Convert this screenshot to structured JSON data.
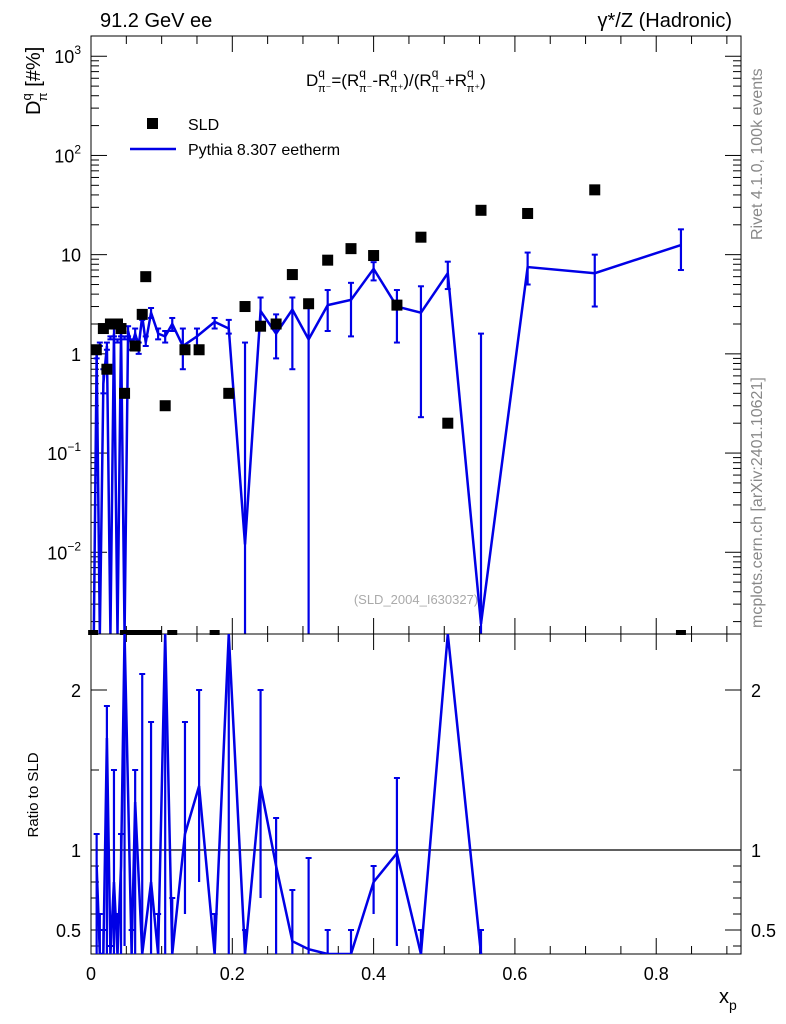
{
  "header": {
    "left": "91.2 GeV ee",
    "right": "γ*/Z (Hadronic)"
  },
  "formula": {
    "lhs_main": "D",
    "lhs_sup": "q",
    "lhs_sub": "π⁻",
    "eq1": "=(R",
    "sup_q": "q",
    "sub1": "π⁻",
    "minus": "-R",
    "sub2": "π⁺",
    "mid": ")/(R",
    "plus": "+R",
    "close": ")"
  },
  "side_text": {
    "top": "Rivet 4.1.0,  100k events",
    "bottom": "mcplots.cern.ch [arXiv:2401.10621]"
  },
  "watermark": "(SLD_2004_I630327)",
  "chart_data": [
    {
      "type": "scatter",
      "panel": "main",
      "ylabel_main": "D",
      "ylabel_sup": "q",
      "ylabel_sub": "π",
      "ylabel_unit": " [#%]",
      "xlim": [
        0,
        0.92
      ],
      "ylim": [
        0.0015,
        1600
      ],
      "yscale": "log",
      "yticks": [
        {
          "value": 0.01,
          "base": "10",
          "exp": "−2"
        },
        {
          "value": 0.1,
          "base": "10",
          "exp": "−1"
        },
        {
          "value": 1,
          "base": "1",
          "exp": ""
        },
        {
          "value": 10,
          "base": "10",
          "exp": ""
        },
        {
          "value": 100,
          "base": "10",
          "exp": "2"
        },
        {
          "value": 1000,
          "base": "10",
          "exp": "3"
        }
      ],
      "legend": [
        {
          "label": "SLD",
          "marker": "square"
        },
        {
          "label": "Pythia 8.307 eetherm",
          "marker": "line"
        }
      ],
      "legend_position": "top-left",
      "series": [
        {
          "name": "SLD",
          "color": "#000000",
          "points": [
            [
              0.0075,
              1.1
            ],
            [
              0.0175,
              1.8
            ],
            [
              0.0225,
              0.7
            ],
            [
              0.0275,
              2.0
            ],
            [
              0.0375,
              2.0
            ],
            [
              0.0425,
              1.8
            ],
            [
              0.0475,
              0.4
            ],
            [
              0.0625,
              1.2
            ],
            [
              0.0725,
              2.5
            ],
            [
              0.0775,
              6.0
            ],
            [
              0.105,
              0.3
            ],
            [
              0.133,
              1.1
            ],
            [
              0.153,
              1.1
            ],
            [
              0.195,
              0.4
            ],
            [
              0.218,
              3.0
            ],
            [
              0.24,
              1.9
            ],
            [
              0.262,
              2.0
            ],
            [
              0.285,
              6.3
            ],
            [
              0.308,
              3.2
            ],
            [
              0.335,
              8.8
            ],
            [
              0.368,
              11.5
            ],
            [
              0.4,
              9.8
            ],
            [
              0.433,
              3.1
            ],
            [
              0.467,
              15.0
            ],
            [
              0.505,
              0.2
            ],
            [
              0.552,
              28.0
            ],
            [
              0.618,
              26.0
            ],
            [
              0.713,
              45.0
            ]
          ],
          "below_range_x": [
            0.003,
            0.048,
            0.058,
            0.068,
            0.082,
            0.093,
            0.115,
            0.175,
            0.835
          ]
        },
        {
          "name": "Pythia 8.307 eetherm",
          "color": "#0000e6",
          "points": [
            [
              0.004,
              0.0008,
              1.0,
              1.2
            ],
            [
              0.008,
              1.0,
              0.9,
              1.1
            ],
            [
              0.0125,
              0.0008,
              1.2,
              1.3
            ],
            [
              0.0175,
              0.5,
              0.4,
              0.7
            ],
            [
              0.0225,
              1.2,
              1.1,
              1.3
            ],
            [
              0.0275,
              0.0008,
              1.4,
              1.5
            ],
            [
              0.0325,
              1.6,
              1.5,
              1.8
            ],
            [
              0.0375,
              0.0008,
              1.3,
              1.4
            ],
            [
              0.0425,
              1.7,
              1.5,
              1.8
            ],
            [
              0.0475,
              0.0008,
              1.4,
              1.5
            ],
            [
              0.0525,
              1.7,
              1.5,
              1.9
            ],
            [
              0.0575,
              1.2,
              1.1,
              1.4
            ],
            [
              0.0625,
              1.6,
              1.4,
              1.8
            ],
            [
              0.0675,
              1.2,
              1.0,
              1.3
            ],
            [
              0.0725,
              2.4,
              2.2,
              2.7
            ],
            [
              0.0775,
              1.3,
              1.2,
              1.5
            ],
            [
              0.085,
              2.6,
              2.3,
              2.9
            ],
            [
              0.095,
              1.6,
              1.4,
              1.8
            ],
            [
              0.105,
              1.5,
              1.3,
              1.7
            ],
            [
              0.115,
              2.0,
              1.7,
              2.3
            ],
            [
              0.13,
              1.2,
              0.7,
              1.8
            ],
            [
              0.15,
              1.5,
              1.2,
              1.8
            ],
            [
              0.175,
              2.1,
              1.8,
              2.3
            ],
            [
              0.195,
              1.8,
              1.6,
              2.2
            ],
            [
              0.218,
              0.012,
              0.0008,
              1.3
            ],
            [
              0.24,
              2.7,
              1.8,
              3.7
            ],
            [
              0.262,
              1.6,
              0.9,
              2.5
            ],
            [
              0.285,
              2.8,
              0.7,
              3.7
            ],
            [
              0.308,
              1.4,
              0.0008,
              3.5
            ],
            [
              0.335,
              3.1,
              1.7,
              4.4
            ],
            [
              0.368,
              3.5,
              1.5,
              5.2
            ],
            [
              0.4,
              7.2,
              5.5,
              8.4
            ],
            [
              0.433,
              3.0,
              1.3,
              4.4
            ],
            [
              0.467,
              2.6,
              0.23,
              4.8
            ],
            [
              0.505,
              6.5,
              4.5,
              8.5
            ],
            [
              0.552,
              0.0019,
              0.0008,
              1.6
            ],
            [
              0.618,
              7.5,
              5.0,
              10.5
            ],
            [
              0.713,
              6.5,
              3.0,
              10.0
            ],
            [
              0.835,
              12.5,
              7.0,
              18.0
            ]
          ]
        }
      ]
    },
    {
      "type": "line",
      "panel": "ratio",
      "ylabel": "Ratio to SLD",
      "xlabel_main": "x",
      "xlabel_sub": "p",
      "xlim": [
        0,
        0.92
      ],
      "ylim": [
        0.35,
        2.35
      ],
      "yticks": [
        0.5,
        1,
        2
      ],
      "xticks": [
        0,
        0.2,
        0.4,
        0.6,
        0.8
      ],
      "xticklabels": [
        "0",
        "0.2",
        "0.4",
        "0.6",
        "0.8"
      ],
      "yticklabels": [
        "0.5",
        "1",
        "2"
      ],
      "reference_line": 1,
      "series": [
        {
          "name": "Pythia 8.307 eetherm / SLD",
          "color": "#0000e6",
          "points": [
            [
              0.008,
              0.9,
              0.0,
              1.1
            ],
            [
              0.0125,
              0.0,
              0.0,
              0.6
            ],
            [
              0.0175,
              0.3,
              0.0,
              0.5
            ],
            [
              0.0225,
              1.7,
              0.0,
              1.9
            ],
            [
              0.0275,
              0.0,
              0.0,
              0.4
            ],
            [
              0.0325,
              0.8,
              0.0,
              1.5
            ],
            [
              0.0375,
              0.0,
              0.0,
              0.6
            ],
            [
              0.0425,
              0.9,
              0.0,
              1.1
            ],
            [
              0.0475,
              3.0,
              0.4,
              3.0
            ],
            [
              0.0575,
              0.0,
              0.0,
              0.5
            ],
            [
              0.0625,
              1.3,
              0.0,
              1.5
            ],
            [
              0.0725,
              0.0,
              0.0,
              2.1
            ],
            [
              0.085,
              0.8,
              0.0,
              1.8
            ],
            [
              0.095,
              0.0,
              0.0,
              0.6
            ],
            [
              0.105,
              3.0,
              0.0,
              3.0
            ],
            [
              0.115,
              0.3,
              0.0,
              0.7
            ],
            [
              0.133,
              1.1,
              0.6,
              1.8
            ],
            [
              0.153,
              1.4,
              0.8,
              2.0
            ],
            [
              0.175,
              0.0,
              0.0,
              0.6
            ],
            [
              0.195,
              3.0,
              0.0,
              3.0
            ],
            [
              0.218,
              0.0,
              0.0,
              0.5
            ],
            [
              0.24,
              1.4,
              0.7,
              2.0
            ],
            [
              0.262,
              0.9,
              0.3,
              1.2
            ],
            [
              0.285,
              0.43,
              0.0,
              0.75
            ],
            [
              0.308,
              0.38,
              0.0,
              0.95
            ],
            [
              0.335,
              0.35,
              0.0,
              0.5
            ],
            [
              0.368,
              0.3,
              0.0,
              0.5
            ],
            [
              0.4,
              0.8,
              0.6,
              0.9
            ],
            [
              0.433,
              0.98,
              0.4,
              1.45
            ],
            [
              0.467,
              0.2,
              0.0,
              0.5
            ],
            [
              0.505,
              3.0,
              2.3,
              3.0
            ],
            [
              0.552,
              0.0,
              0.0,
              0.5
            ]
          ]
        }
      ]
    }
  ]
}
